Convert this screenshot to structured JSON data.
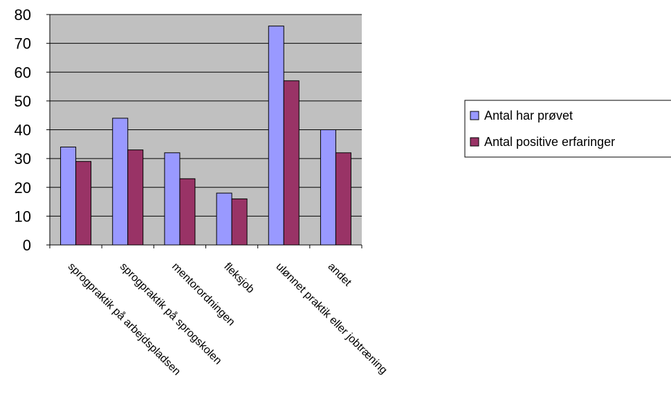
{
  "chart_data": {
    "type": "bar",
    "categories": [
      "sprogpraktik på arbejdspladsen",
      "sprogpraktik på sprogskolen",
      "mentorordningen",
      "fleksjob",
      "ulønnet praktik eller jobtræning",
      "andet"
    ],
    "series": [
      {
        "name": "Antal har prøvet",
        "values": [
          34,
          44,
          32,
          18,
          76,
          40
        ],
        "color": "#9999ff"
      },
      {
        "name": "Antal positive erfaringer",
        "values": [
          29,
          33,
          23,
          16,
          57,
          32
        ],
        "color": "#993366"
      }
    ],
    "title": "",
    "xlabel": "",
    "ylabel": "",
    "ylim": [
      0,
      80
    ],
    "yticks": [
      "0",
      "10",
      "20",
      "30",
      "40",
      "50",
      "60",
      "70",
      "80"
    ],
    "grid": true,
    "legend_position": "right",
    "plot_background": "#c0c0c0"
  }
}
